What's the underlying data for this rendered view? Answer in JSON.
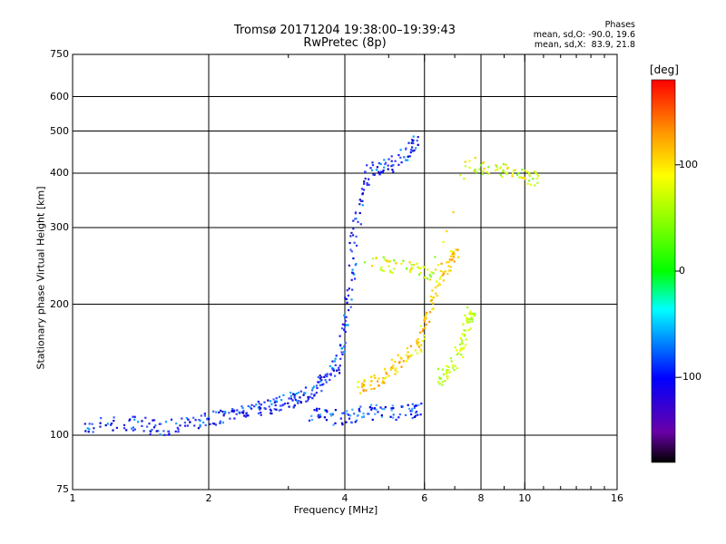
{
  "chart_data": {
    "type": "scatter",
    "title": "Tromsø 20171204 19:38:00–19:39:43",
    "subtitle": "RwPretec (8p)",
    "xlabel": "Frequency [MHz]",
    "ylabel": "Stationary phase Virtual Height [km]",
    "xscale": "log",
    "yscale": "log",
    "xlim": [
      1,
      16
    ],
    "ylim": [
      75,
      750
    ],
    "x_ticks": [
      1,
      2,
      4,
      6,
      8,
      10,
      16
    ],
    "x_tick_labels": [
      "1",
      "2",
      "4",
      "6",
      "8",
      "10",
      "16"
    ],
    "x_minor_ticks": [
      3,
      5,
      7,
      9,
      11,
      12,
      13,
      14,
      15
    ],
    "y_ticks": [
      75,
      100,
      200,
      300,
      400,
      500,
      600,
      750
    ],
    "y_tick_labels": [
      "75",
      "100",
      "200",
      "300",
      "400",
      "500",
      "600",
      "750"
    ],
    "grid": true,
    "stats": {
      "header": "Phases",
      "line_o": "mean, sd,O: -90.0, 19.6",
      "line_x": "mean, sd,X:  83.9, 21.8"
    },
    "colorbar": {
      "label": "[deg]",
      "range": [
        -180,
        180
      ],
      "ticks": [
        100,
        0,
        -100
      ],
      "tick_labels": [
        "100",
        "0",
        "-100"
      ]
    },
    "o_trace": [
      [
        1.05,
        104
      ],
      [
        1.1,
        105
      ],
      [
        1.25,
        107
      ],
      [
        1.35,
        107
      ],
      [
        1.45,
        106
      ],
      [
        1.5,
        104
      ],
      [
        1.6,
        104
      ],
      [
        1.7,
        105
      ],
      [
        1.8,
        106
      ],
      [
        1.9,
        107
      ],
      [
        2.0,
        109
      ],
      [
        2.1,
        110
      ],
      [
        2.2,
        111
      ],
      [
        2.3,
        112
      ],
      [
        2.4,
        113
      ],
      [
        2.5,
        114
      ],
      [
        2.6,
        115
      ],
      [
        2.7,
        116
      ],
      [
        2.8,
        117
      ],
      [
        2.9,
        118
      ],
      [
        3.0,
        120
      ],
      [
        3.1,
        121
      ],
      [
        3.2,
        123
      ],
      [
        3.3,
        125
      ],
      [
        3.4,
        127
      ],
      [
        3.5,
        130
      ],
      [
        3.6,
        133
      ],
      [
        3.7,
        137
      ],
      [
        3.8,
        142
      ],
      [
        3.9,
        150
      ],
      [
        3.95,
        160
      ],
      [
        4.0,
        175
      ],
      [
        4.05,
        195
      ],
      [
        4.1,
        220
      ],
      [
        4.15,
        250
      ],
      [
        4.2,
        290
      ],
      [
        4.3,
        330
      ],
      [
        4.4,
        370
      ],
      [
        4.5,
        400
      ],
      [
        4.7,
        410
      ],
      [
        4.9,
        415
      ],
      [
        5.1,
        420
      ],
      [
        5.3,
        430
      ],
      [
        5.5,
        450
      ],
      [
        5.7,
        470
      ]
    ],
    "o_echo": [
      [
        3.3,
        112
      ],
      [
        3.5,
        111
      ],
      [
        3.7,
        110
      ],
      [
        3.9,
        110
      ],
      [
        4.1,
        111
      ],
      [
        4.3,
        112
      ],
      [
        4.5,
        113
      ],
      [
        4.7,
        113
      ],
      [
        5.0,
        113
      ],
      [
        5.3,
        113
      ],
      [
        5.6,
        114
      ],
      [
        5.8,
        114
      ]
    ],
    "x_trace": [
      [
        4.3,
        128
      ],
      [
        4.4,
        130
      ],
      [
        4.6,
        132
      ],
      [
        4.8,
        135
      ],
      [
        5.0,
        140
      ],
      [
        5.2,
        145
      ],
      [
        5.4,
        150
      ],
      [
        5.6,
        155
      ],
      [
        5.8,
        160
      ],
      [
        5.9,
        170
      ],
      [
        6.0,
        180
      ],
      [
        6.2,
        200
      ],
      [
        6.4,
        220
      ],
      [
        6.6,
        240
      ],
      [
        6.8,
        250
      ],
      [
        7.0,
        260
      ]
    ],
    "x_upper": [
      [
        4.5,
        250
      ],
      [
        4.8,
        247
      ],
      [
        5.1,
        245
      ],
      [
        5.4,
        242
      ],
      [
        5.7,
        240
      ],
      [
        6.0,
        238
      ],
      [
        6.3,
        236
      ],
      [
        7.5,
        420
      ],
      [
        8.0,
        415
      ],
      [
        8.5,
        410
      ],
      [
        9.0,
        405
      ],
      [
        9.5,
        400
      ],
      [
        10.0,
        395
      ],
      [
        10.5,
        390
      ]
    ],
    "x_late": [
      [
        6.4,
        135
      ],
      [
        6.6,
        138
      ],
      [
        6.8,
        142
      ],
      [
        7.0,
        148
      ],
      [
        7.2,
        155
      ],
      [
        7.3,
        165
      ],
      [
        7.4,
        175
      ],
      [
        7.5,
        185
      ],
      [
        7.6,
        190
      ]
    ]
  }
}
